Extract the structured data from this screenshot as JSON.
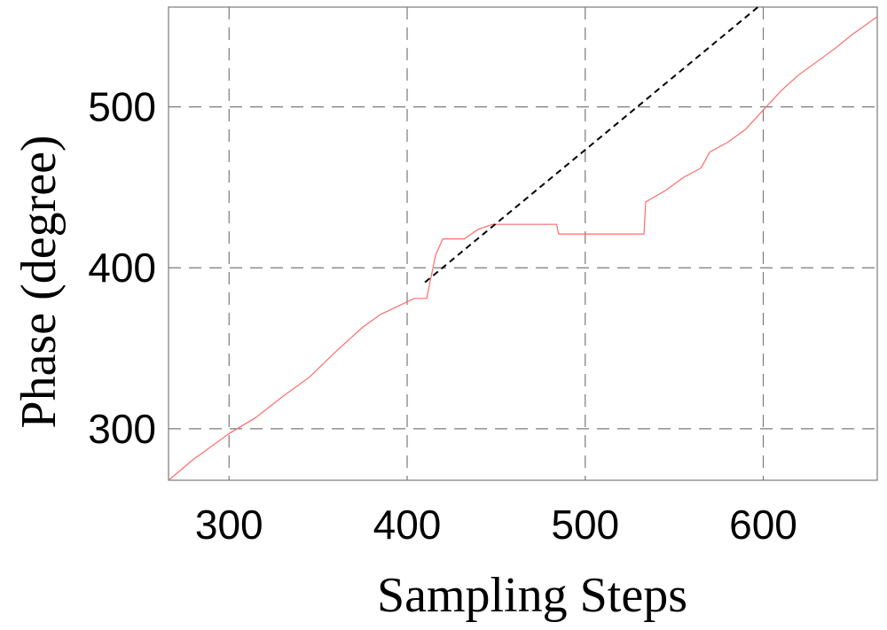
{
  "chart_data": {
    "type": "line",
    "title": "",
    "xlabel": "Sampling Steps",
    "ylabel": "Phase (degree)",
    "xlim": [
      266,
      664
    ],
    "ylim": [
      268,
      562
    ],
    "xticks": [
      300,
      400,
      500,
      600
    ],
    "yticks": [
      300,
      400,
      500
    ],
    "grid": true,
    "series": [
      {
        "style": "solid",
        "color": "#ff6b6b",
        "x": [
          266,
          280,
          300,
          315,
          330,
          345,
          360,
          375,
          385,
          404,
          411,
          413,
          416,
          420,
          432,
          440,
          448,
          455,
          465,
          484,
          485,
          533,
          534,
          545,
          555,
          565,
          570,
          580,
          590,
          600,
          610,
          620,
          630,
          640,
          650,
          664
        ],
        "y": [
          268,
          281,
          297,
          307,
          320,
          332,
          348,
          363,
          371,
          381,
          381,
          392,
          408,
          418,
          418,
          424,
          427,
          427,
          427,
          427,
          421,
          421,
          441,
          448,
          456,
          462,
          472,
          478,
          486,
          498,
          510,
          520,
          528,
          536,
          545,
          556
        ]
      },
      {
        "style": "dashed",
        "color": "#000000",
        "x": [
          410,
          597
        ],
        "y": [
          391,
          562
        ]
      }
    ]
  }
}
